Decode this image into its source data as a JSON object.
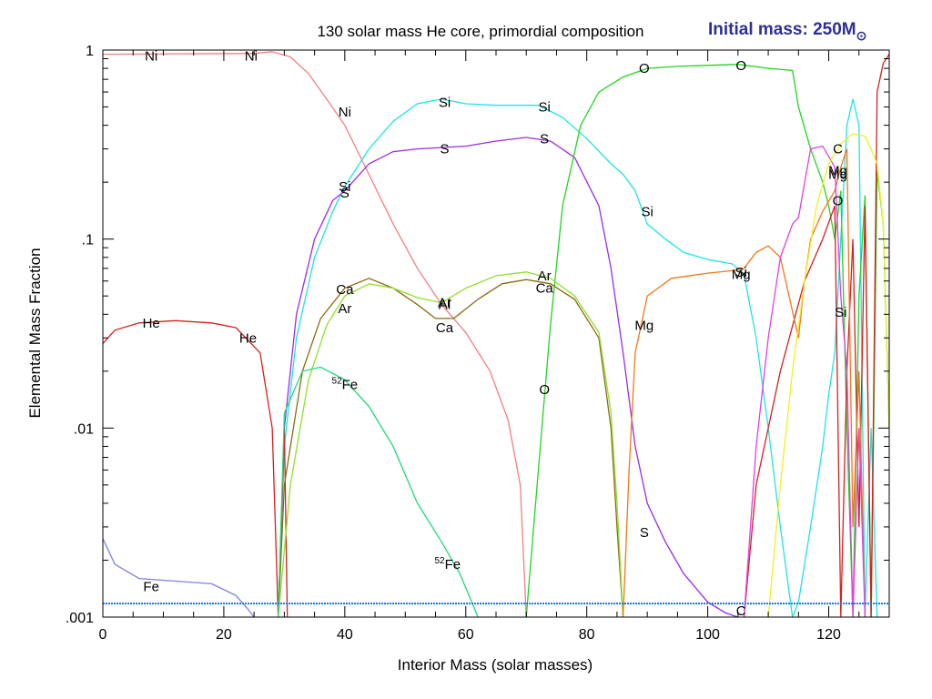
{
  "chart_data": {
    "type": "line",
    "title": "130 solar mass He core, primordial composition",
    "subtitle": "Initial mass: 250M",
    "subtitle_symbol": "⊙",
    "xlabel": "Interior Mass (solar masses)",
    "ylabel": "Elemental Mass Fraction",
    "xlim": [
      0,
      130
    ],
    "ylim": [
      0.001,
      1
    ],
    "yscale": "log",
    "grid": false,
    "xticks": [
      0,
      20,
      40,
      60,
      80,
      100,
      120
    ],
    "xtick_labels": [
      "0",
      "20",
      "40",
      "60",
      "80",
      "100",
      "120"
    ],
    "yticks": [
      0.001,
      0.01,
      0.1,
      1
    ],
    "ytick_labels": [
      ".001",
      ".01",
      ".1",
      "1"
    ],
    "series": [
      {
        "key": "ni",
        "color": "#f08080",
        "points": [
          [
            0,
            0.95
          ],
          [
            25,
            0.96
          ],
          [
            28,
            0.98
          ],
          [
            31,
            0.92
          ],
          [
            34,
            0.75
          ],
          [
            37,
            0.55
          ],
          [
            40,
            0.4
          ],
          [
            44,
            0.22
          ],
          [
            48,
            0.12
          ],
          [
            52,
            0.07
          ],
          [
            56,
            0.045
          ],
          [
            60,
            0.032
          ],
          [
            64,
            0.02
          ],
          [
            67,
            0.011
          ],
          [
            69,
            0.005
          ],
          [
            70,
            0.001
          ]
        ]
      },
      {
        "key": "si",
        "color": "#1ee3e6",
        "points": [
          [
            29,
            0.001
          ],
          [
            30,
            0.008
          ],
          [
            32,
            0.03
          ],
          [
            35,
            0.08
          ],
          [
            38,
            0.14
          ],
          [
            40,
            0.19
          ],
          [
            44,
            0.3
          ],
          [
            48,
            0.42
          ],
          [
            52,
            0.52
          ],
          [
            56,
            0.55
          ],
          [
            60,
            0.52
          ],
          [
            65,
            0.51
          ],
          [
            72,
            0.51
          ],
          [
            76,
            0.44
          ],
          [
            80,
            0.34
          ],
          [
            84,
            0.25
          ],
          [
            86,
            0.22
          ],
          [
            88,
            0.18
          ],
          [
            90,
            0.12
          ],
          [
            93,
            0.1
          ],
          [
            96,
            0.085
          ],
          [
            100,
            0.078
          ],
          [
            104,
            0.074
          ],
          [
            106,
            0.065
          ],
          [
            108,
            0.03
          ],
          [
            110,
            0.01
          ],
          [
            112,
            0.003
          ],
          [
            114,
            0.001
          ],
          [
            115,
            0.0012
          ],
          [
            117,
            0.003
          ],
          [
            119,
            0.008
          ],
          [
            120,
            0.015
          ],
          [
            121,
            0.025
          ],
          [
            122,
            0.1
          ],
          [
            123,
            0.4
          ],
          [
            124,
            0.55
          ],
          [
            125,
            0.4
          ],
          [
            126,
            0.001
          ],
          [
            127,
            0.01
          ],
          [
            128,
            0.001
          ]
        ]
      },
      {
        "key": "s",
        "color": "#9d2be0",
        "points": [
          [
            29,
            0.001
          ],
          [
            30,
            0.01
          ],
          [
            32,
            0.04
          ],
          [
            35,
            0.1
          ],
          [
            38,
            0.16
          ],
          [
            40,
            0.18
          ],
          [
            44,
            0.25
          ],
          [
            48,
            0.29
          ],
          [
            52,
            0.3
          ],
          [
            56,
            0.305
          ],
          [
            60,
            0.31
          ],
          [
            65,
            0.33
          ],
          [
            70,
            0.345
          ],
          [
            74,
            0.33
          ],
          [
            78,
            0.27
          ],
          [
            82,
            0.15
          ],
          [
            84,
            0.07
          ],
          [
            86,
            0.025
          ],
          [
            88,
            0.008
          ],
          [
            90,
            0.004
          ],
          [
            93,
            0.0025
          ],
          [
            96,
            0.0017
          ],
          [
            100,
            0.0012
          ],
          [
            103,
            0.00105
          ],
          [
            105,
            0.001
          ]
        ]
      },
      {
        "key": "o",
        "color": "#22d422",
        "points": [
          [
            70,
            0.001
          ],
          [
            72,
            0.006
          ],
          [
            74,
            0.035
          ],
          [
            76,
            0.15
          ],
          [
            79,
            0.4
          ],
          [
            82,
            0.6
          ],
          [
            86,
            0.72
          ],
          [
            90,
            0.8
          ],
          [
            95,
            0.82
          ],
          [
            100,
            0.83
          ],
          [
            105,
            0.84
          ],
          [
            110,
            0.8
          ],
          [
            114,
            0.78
          ],
          [
            115,
            0.5
          ],
          [
            117,
            0.3
          ],
          [
            119,
            0.2
          ],
          [
            120,
            0.15
          ],
          [
            121,
            0.1
          ],
          [
            122,
            0.18
          ],
          [
            123,
            0.01
          ],
          [
            124,
            0.001
          ],
          [
            125,
            0.05
          ],
          [
            126,
            0.17
          ],
          [
            127,
            0.001
          ],
          [
            128,
            0.23
          ],
          [
            129,
            0.12
          ],
          [
            130,
            0.01
          ]
        ]
      },
      {
        "key": "he",
        "color": "#d42020",
        "points": [
          [
            0,
            0.028
          ],
          [
            2,
            0.033
          ],
          [
            6,
            0.036
          ],
          [
            12,
            0.037
          ],
          [
            18,
            0.036
          ],
          [
            22,
            0.034
          ],
          [
            26,
            0.025
          ],
          [
            28,
            0.01
          ],
          [
            29,
            0.001
          ],
          [
            30,
            0.01
          ],
          [
            30.5,
            0.001
          ]
        ]
      },
      {
        "key": "he-tail",
        "color": "#d42020",
        "points": [
          [
            106,
            0.001
          ],
          [
            108,
            0.005
          ],
          [
            112,
            0.02
          ],
          [
            116,
            0.06
          ],
          [
            119,
            0.1
          ],
          [
            121,
            0.15
          ],
          [
            122,
            0.001
          ],
          [
            123,
            0.02
          ],
          [
            124,
            0.1
          ],
          [
            125,
            0.003
          ],
          [
            126,
            0.15
          ],
          [
            127,
            0.001
          ],
          [
            128,
            0.6
          ],
          [
            129,
            0.85
          ],
          [
            130,
            0.95
          ]
        ]
      },
      {
        "key": "ca",
        "color": "#8b6b10",
        "points": [
          [
            29,
            0.001
          ],
          [
            30,
            0.005
          ],
          [
            33,
            0.02
          ],
          [
            36,
            0.038
          ],
          [
            40,
            0.055
          ],
          [
            44,
            0.062
          ],
          [
            48,
            0.055
          ],
          [
            52,
            0.045
          ],
          [
            55,
            0.038
          ],
          [
            58,
            0.038
          ],
          [
            62,
            0.048
          ],
          [
            66,
            0.058
          ],
          [
            70,
            0.061
          ],
          [
            74,
            0.058
          ],
          [
            78,
            0.048
          ],
          [
            82,
            0.03
          ],
          [
            84,
            0.01
          ],
          [
            85,
            0.003
          ],
          [
            86,
            0.001
          ]
        ]
      },
      {
        "key": "ar",
        "color": "#8ee02a",
        "points": [
          [
            29,
            0.001
          ],
          [
            31,
            0.005
          ],
          [
            34,
            0.018
          ],
          [
            37,
            0.035
          ],
          [
            40,
            0.05
          ],
          [
            44,
            0.058
          ],
          [
            48,
            0.055
          ],
          [
            52,
            0.049
          ],
          [
            56,
            0.046
          ],
          [
            60,
            0.055
          ],
          [
            65,
            0.064
          ],
          [
            70,
            0.067
          ],
          [
            74,
            0.062
          ],
          [
            78,
            0.05
          ],
          [
            82,
            0.032
          ],
          [
            84,
            0.012
          ],
          [
            85,
            0.004
          ],
          [
            86,
            0.001
          ]
        ]
      },
      {
        "key": "fe52",
        "color": "#20d87a",
        "points": [
          [
            29,
            0.001
          ],
          [
            30,
            0.012
          ],
          [
            33,
            0.02
          ],
          [
            36,
            0.021
          ],
          [
            40,
            0.018
          ],
          [
            44,
            0.013
          ],
          [
            48,
            0.008
          ],
          [
            52,
            0.004
          ],
          [
            56,
            0.0025
          ],
          [
            59,
            0.0017
          ],
          [
            61,
            0.0012
          ],
          [
            62,
            0.001
          ]
        ]
      },
      {
        "key": "fe",
        "color": "#8080e0",
        "points": [
          [
            0,
            0.0026
          ],
          [
            2,
            0.0019
          ],
          [
            6,
            0.0016
          ],
          [
            12,
            0.00155
          ],
          [
            18,
            0.0015
          ],
          [
            22,
            0.0013
          ],
          [
            24,
            0.0011
          ],
          [
            25,
            0.001
          ]
        ]
      },
      {
        "key": "mg",
        "color": "#f07818",
        "points": [
          [
            86,
            0.001
          ],
          [
            87,
            0.006
          ],
          [
            88,
            0.025
          ],
          [
            90,
            0.05
          ],
          [
            94,
            0.062
          ],
          [
            100,
            0.066
          ],
          [
            104,
            0.068
          ],
          [
            106,
            0.07
          ],
          [
            108,
            0.085
          ],
          [
            110,
            0.092
          ],
          [
            112,
            0.08
          ],
          [
            115,
            0.03
          ],
          [
            116,
            0.06
          ],
          [
            117,
            0.1
          ],
          [
            119,
            0.14
          ],
          [
            121,
            0.18
          ],
          [
            122,
            0.24
          ],
          [
            123,
            0.3
          ],
          [
            124,
            0.003
          ],
          [
            125,
            0.02
          ],
          [
            126,
            0.001
          ]
        ]
      },
      {
        "key": "mg2",
        "color": "#e040e0",
        "points": [
          [
            106,
            0.001
          ],
          [
            108,
            0.008
          ],
          [
            110,
            0.03
          ],
          [
            112,
            0.08
          ],
          [
            114,
            0.12
          ],
          [
            115,
            0.13
          ],
          [
            117,
            0.3
          ],
          [
            119,
            0.31
          ],
          [
            121,
            0.24
          ],
          [
            122,
            0.05
          ],
          [
            123,
            0.02
          ],
          [
            124,
            0.001
          ],
          [
            125,
            0.01
          ],
          [
            126,
            0.001
          ]
        ]
      },
      {
        "key": "c",
        "color": "#f0f020",
        "points": [
          [
            110,
            0.001
          ],
          [
            112,
            0.005
          ],
          [
            114,
            0.02
          ],
          [
            116,
            0.06
          ],
          [
            118,
            0.15
          ],
          [
            120,
            0.25
          ],
          [
            122,
            0.32
          ],
          [
            124,
            0.36
          ],
          [
            126,
            0.35
          ],
          [
            127,
            0.3
          ],
          [
            128,
            0.25
          ],
          [
            129,
            0.12
          ],
          [
            130,
            0.01
          ]
        ]
      },
      {
        "key": "floor",
        "color": "#1e74d8",
        "points": [
          [
            0,
            0.00118
          ],
          [
            130,
            0.00118
          ]
        ]
      }
    ],
    "labels": [
      {
        "text": "Ni",
        "x": 8,
        "y": 0.93
      },
      {
        "text": "Ni",
        "x": 24.5,
        "y": 0.93
      },
      {
        "text": "Ni",
        "x": 40,
        "y": 0.47
      },
      {
        "text": "Si",
        "x": 56.5,
        "y": 0.53
      },
      {
        "text": "Si",
        "x": 73,
        "y": 0.5
      },
      {
        "text": "Si",
        "x": 90,
        "y": 0.14
      },
      {
        "text": "Si",
        "x": 122,
        "y": 0.041
      },
      {
        "text": "Si",
        "x": 105.5,
        "y": 0.067
      },
      {
        "text": "Si",
        "x": 40,
        "y": 0.19
      },
      {
        "text": "S",
        "x": 40,
        "y": 0.175
      },
      {
        "text": "S",
        "x": 56.5,
        "y": 0.3
      },
      {
        "text": "S",
        "x": 73,
        "y": 0.34
      },
      {
        "text": "S",
        "x": 89.5,
        "y": 0.0028
      },
      {
        "text": "O",
        "x": 89.5,
        "y": 0.8
      },
      {
        "text": "O",
        "x": 105.5,
        "y": 0.83
      },
      {
        "text": "O",
        "x": 73,
        "y": 0.016
      },
      {
        "text": "O",
        "x": 121.5,
        "y": 0.16
      },
      {
        "text": "He",
        "x": 8,
        "y": 0.036
      },
      {
        "text": "He",
        "x": 24,
        "y": 0.03
      },
      {
        "text": "Ca",
        "x": 40,
        "y": 0.054
      },
      {
        "text": "Ca",
        "x": 56.5,
        "y": 0.034
      },
      {
        "text": "Ca",
        "x": 73,
        "y": 0.055
      },
      {
        "text": "Ar",
        "x": 40,
        "y": 0.043
      },
      {
        "text": "Ar",
        "x": 56.5,
        "y": 0.046
      },
      {
        "text": "Al",
        "x": 56.5,
        "y": 0.045
      },
      {
        "text": "Ar",
        "x": 73,
        "y": 0.064
      },
      {
        "text": "Mg",
        "x": 89.5,
        "y": 0.035
      },
      {
        "text": "Mg",
        "x": 105.5,
        "y": 0.065
      },
      {
        "text": "Mg",
        "x": 121.5,
        "y": 0.23
      },
      {
        "text": "Mg",
        "x": 121.5,
        "y": 0.22
      },
      {
        "text": "C",
        "x": 121.5,
        "y": 0.3
      },
      {
        "text": "C",
        "x": 105.5,
        "y": 0.00108
      },
      {
        "text": "Fe",
        "x": 8,
        "y": 0.00145
      },
      {
        "text": "Fe",
        "x": 40,
        "y": 0.017,
        "sup": "52"
      },
      {
        "text": "Fe",
        "x": 57,
        "y": 0.0019,
        "sup": "52"
      }
    ]
  }
}
